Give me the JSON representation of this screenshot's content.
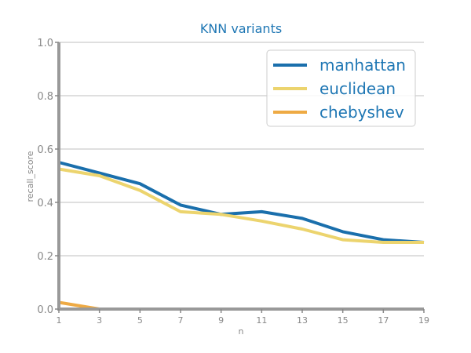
{
  "chart_data": {
    "type": "line",
    "title": "KNN variants",
    "xlabel": "n",
    "ylabel": "recall_score",
    "x": [
      1,
      3,
      5,
      7,
      9,
      11,
      13,
      15,
      17,
      19
    ],
    "xticks": [
      "1",
      "3",
      "5",
      "7",
      "9",
      "11",
      "13",
      "15",
      "17",
      "19"
    ],
    "yticks": [
      "0.0",
      "0.2",
      "0.4",
      "0.6",
      "0.8",
      "1.0"
    ],
    "xlim": [
      1,
      19
    ],
    "ylim": [
      0,
      1
    ],
    "grid": "horizontal",
    "legend_position": "top-right",
    "series": [
      {
        "name": "manhattan",
        "color": "#1a6fac",
        "values": [
          0.55,
          0.51,
          0.47,
          0.39,
          0.355,
          0.365,
          0.34,
          0.29,
          0.26,
          0.25
        ]
      },
      {
        "name": "euclidean",
        "color": "#ecd46e",
        "values": [
          0.525,
          0.5,
          0.445,
          0.365,
          0.355,
          0.33,
          0.3,
          0.26,
          0.25,
          0.25
        ]
      },
      {
        "name": "chebyshev",
        "color": "#eeaa44",
        "values": [
          0.025,
          0.0,
          0.0,
          0.0,
          0.0,
          0.0,
          0.0,
          0.0,
          0.0,
          0.0
        ]
      }
    ]
  }
}
